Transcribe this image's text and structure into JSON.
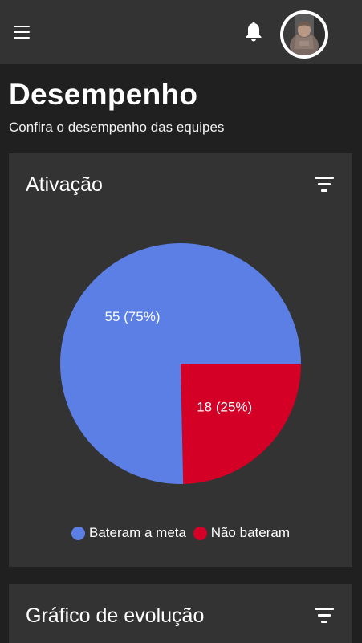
{
  "header": {
    "menu_icon": "hamburger-menu-icon",
    "notification_icon": "bell-icon",
    "avatar_alt": "user-avatar"
  },
  "page": {
    "title": "Desempenho",
    "subtitle": "Confira o desempenho das equipes"
  },
  "cards": {
    "activation": {
      "title": "Ativação",
      "filter_icon": "filter-icon"
    },
    "evolution": {
      "title": "Gráfico de evolução",
      "filter_icon": "filter-icon"
    }
  },
  "colors": {
    "background": "#202020",
    "surface": "#333333",
    "series_met": "#5b7fe4",
    "series_not_met": "#d50026",
    "text": "#ffffff"
  },
  "chart_data": {
    "type": "pie",
    "title": "Ativação",
    "categories": [
      "Bateram a meta",
      "Não bateram"
    ],
    "values": [
      55,
      18
    ],
    "labels": [
      "55 (75%)",
      "18 (25%)"
    ],
    "colors": [
      "#5b7fe4",
      "#d50026"
    ],
    "legend": "bottom"
  }
}
